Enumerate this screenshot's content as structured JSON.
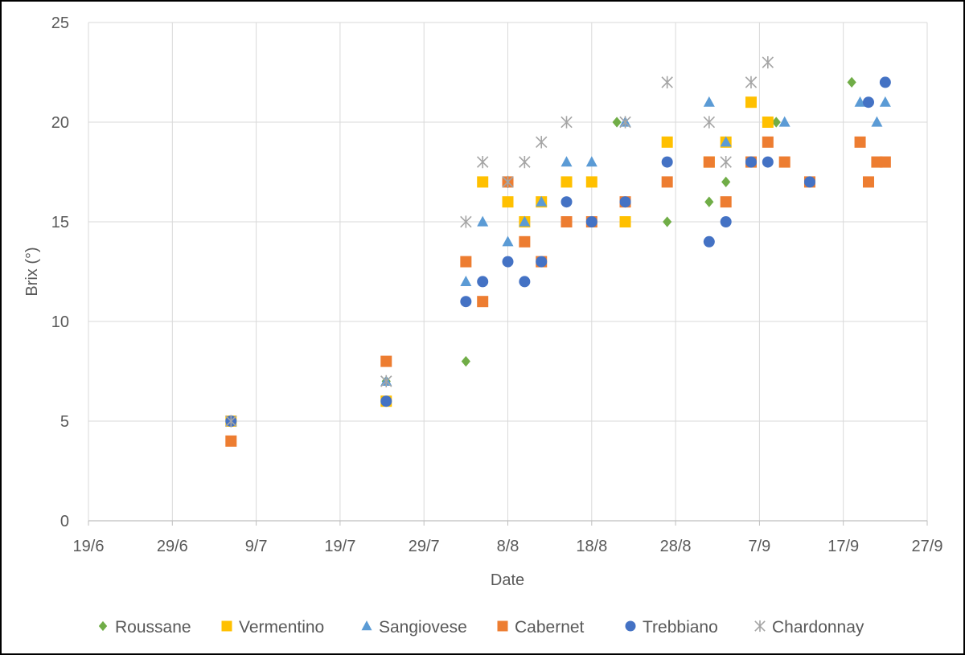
{
  "chart_data": {
    "type": "scatter",
    "title": "",
    "xlabel": "Date",
    "ylabel": "Brix (°)",
    "x_unit": "day-of-year",
    "xlim": [
      170,
      270
    ],
    "ylim": [
      0,
      25
    ],
    "x_ticks": [
      {
        "value": 170,
        "label": "19/6"
      },
      {
        "value": 180,
        "label": "29/6"
      },
      {
        "value": 190,
        "label": "9/7"
      },
      {
        "value": 200,
        "label": "19/7"
      },
      {
        "value": 210,
        "label": "29/7"
      },
      {
        "value": 220,
        "label": "8/8"
      },
      {
        "value": 230,
        "label": "18/8"
      },
      {
        "value": 240,
        "label": "28/8"
      },
      {
        "value": 250,
        "label": "7/9"
      },
      {
        "value": 260,
        "label": "17/9"
      },
      {
        "value": 270,
        "label": "27/9"
      }
    ],
    "y_ticks": [
      0,
      5,
      10,
      15,
      20,
      25
    ],
    "grid": true,
    "legend_position": "bottom",
    "series": [
      {
        "name": "Roussane",
        "marker": "diamond",
        "color": "#70AD47",
        "x": [
          187,
          205.5,
          215,
          227,
          233,
          239,
          244,
          246,
          252,
          261
        ],
        "y": [
          5,
          7,
          8,
          15,
          20,
          15,
          16,
          17,
          20,
          22
        ]
      },
      {
        "name": "Vermentino",
        "marker": "square",
        "color": "#FFC000",
        "x": [
          187,
          205.5,
          217,
          220,
          222,
          224,
          227,
          230,
          234,
          239,
          244,
          246,
          249,
          251
        ],
        "y": [
          5,
          6,
          17,
          16,
          15,
          16,
          17,
          17,
          15,
          19,
          18,
          19,
          21,
          20
        ]
      },
      {
        "name": "Sangiovese",
        "marker": "triangle",
        "color": "#5B9BD5",
        "x": [
          187,
          205.5,
          215,
          217,
          220,
          222,
          224,
          227,
          230,
          234,
          244,
          246,
          249,
          253,
          262,
          264,
          265
        ],
        "y": [
          5,
          7,
          12,
          15,
          14,
          15,
          16,
          18,
          18,
          20,
          21,
          19,
          18,
          20,
          21,
          20,
          21
        ],
        "y_extra": [],
        "x_extra": []
      },
      {
        "name": "Cabernet",
        "marker": "square",
        "color": "#ED7D31",
        "x": [
          187,
          205.5,
          215,
          217,
          220,
          222,
          224,
          227,
          230,
          234,
          239,
          244,
          246,
          249,
          251,
          253,
          256,
          262,
          263,
          264,
          265
        ],
        "y": [
          4,
          8,
          13,
          11,
          17,
          14,
          13,
          15,
          15,
          16,
          17,
          18,
          16,
          18,
          19,
          18,
          17,
          19,
          17,
          18,
          18
        ]
      },
      {
        "name": "Trebbiano",
        "marker": "circle",
        "color": "#4472C4",
        "x": [
          187,
          205.5,
          215,
          217,
          220,
          222,
          224,
          227,
          230,
          234,
          239,
          244,
          246,
          249,
          251,
          256,
          263,
          265
        ],
        "y": [
          5,
          6,
          11,
          12,
          13,
          12,
          13,
          16,
          15,
          16,
          18,
          14,
          15,
          18,
          18,
          17,
          21,
          22
        ]
      },
      {
        "name": "Chardonnay",
        "marker": "star",
        "color": "#A5A5A5",
        "x": [
          187,
          205.5,
          215,
          217,
          220,
          222,
          224,
          227,
          234,
          239,
          244,
          246,
          249,
          251
        ],
        "y": [
          5,
          7,
          15,
          18,
          17,
          18,
          19,
          20,
          20,
          22,
          20,
          18,
          22,
          23
        ]
      }
    ]
  }
}
